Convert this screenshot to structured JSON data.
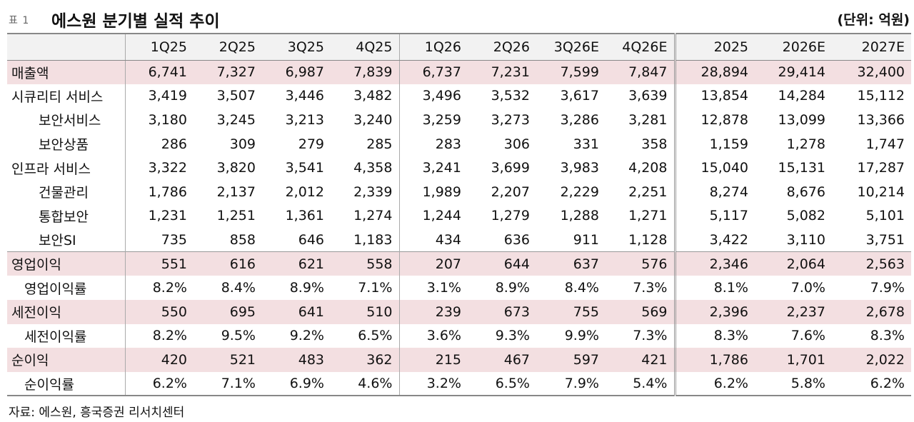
{
  "header": {
    "table_label": "표 1",
    "title": "에스원 분기별 실적 추이",
    "unit": "(단위: 억원)"
  },
  "columns": [
    "1Q25",
    "2Q25",
    "3Q25",
    "4Q25",
    "1Q26",
    "2Q26",
    "3Q26E",
    "4Q26E",
    "2025",
    "2026E",
    "2027E"
  ],
  "rows": [
    {
      "label": "매출액",
      "values": [
        "6,741",
        "7,327",
        "6,987",
        "7,839",
        "6,737",
        "7,231",
        "7,599",
        "7,847",
        "28,894",
        "29,414",
        "32,400"
      ]
    },
    {
      "label": "시큐리티 서비스",
      "values": [
        "3,419",
        "3,507",
        "3,446",
        "3,482",
        "3,496",
        "3,532",
        "3,617",
        "3,639",
        "13,854",
        "14,284",
        "15,112"
      ]
    },
    {
      "label": "보안서비스",
      "values": [
        "3,180",
        "3,245",
        "3,213",
        "3,240",
        "3,259",
        "3,273",
        "3,286",
        "3,281",
        "12,878",
        "13,099",
        "13,366"
      ]
    },
    {
      "label": "보안상품",
      "values": [
        "286",
        "309",
        "279",
        "285",
        "283",
        "306",
        "331",
        "358",
        "1,159",
        "1,278",
        "1,747"
      ]
    },
    {
      "label": "인프라 서비스",
      "values": [
        "3,322",
        "3,820",
        "3,541",
        "4,358",
        "3,241",
        "3,699",
        "3,983",
        "4,208",
        "15,040",
        "15,131",
        "17,287"
      ]
    },
    {
      "label": "건물관리",
      "values": [
        "1,786",
        "2,137",
        "2,012",
        "2,339",
        "1,989",
        "2,207",
        "2,229",
        "2,251",
        "8,274",
        "8,676",
        "10,214"
      ]
    },
    {
      "label": "통합보안",
      "values": [
        "1,231",
        "1,251",
        "1,361",
        "1,274",
        "1,244",
        "1,279",
        "1,288",
        "1,271",
        "5,117",
        "5,082",
        "5,101"
      ]
    },
    {
      "label": "보안SI",
      "values": [
        "735",
        "858",
        "646",
        "1,183",
        "434",
        "636",
        "911",
        "1,128",
        "3,422",
        "3,110",
        "3,751"
      ]
    },
    {
      "label": "영업이익",
      "values": [
        "551",
        "616",
        "621",
        "558",
        "207",
        "644",
        "637",
        "576",
        "2,346",
        "2,064",
        "2,563"
      ]
    },
    {
      "label": "영업이익률",
      "values": [
        "8.2%",
        "8.4%",
        "8.9%",
        "7.1%",
        "3.1%",
        "8.9%",
        "8.4%",
        "7.3%",
        "8.1%",
        "7.0%",
        "7.9%"
      ]
    },
    {
      "label": "세전이익",
      "values": [
        "550",
        "695",
        "641",
        "510",
        "239",
        "673",
        "755",
        "569",
        "2,396",
        "2,237",
        "2,678"
      ]
    },
    {
      "label": "세전이익률",
      "values": [
        "8.2%",
        "9.5%",
        "9.2%",
        "6.5%",
        "3.6%",
        "9.3%",
        "9.9%",
        "7.3%",
        "8.3%",
        "7.6%",
        "8.3%"
      ]
    },
    {
      "label": "순이익",
      "values": [
        "420",
        "521",
        "483",
        "362",
        "215",
        "467",
        "597",
        "421",
        "1,786",
        "1,701",
        "2,022"
      ]
    },
    {
      "label": "순이익률",
      "values": [
        "6.2%",
        "7.1%",
        "6.9%",
        "4.6%",
        "3.2%",
        "6.5%",
        "7.9%",
        "5.4%",
        "6.2%",
        "5.8%",
        "6.2%"
      ]
    }
  ],
  "source": "자료: 에스원, 흥국증권 리서치센터",
  "colors": {
    "highlight_row": "#f3dfe1",
    "header_bg": "#f2f2f2",
    "rule": "#888888"
  }
}
